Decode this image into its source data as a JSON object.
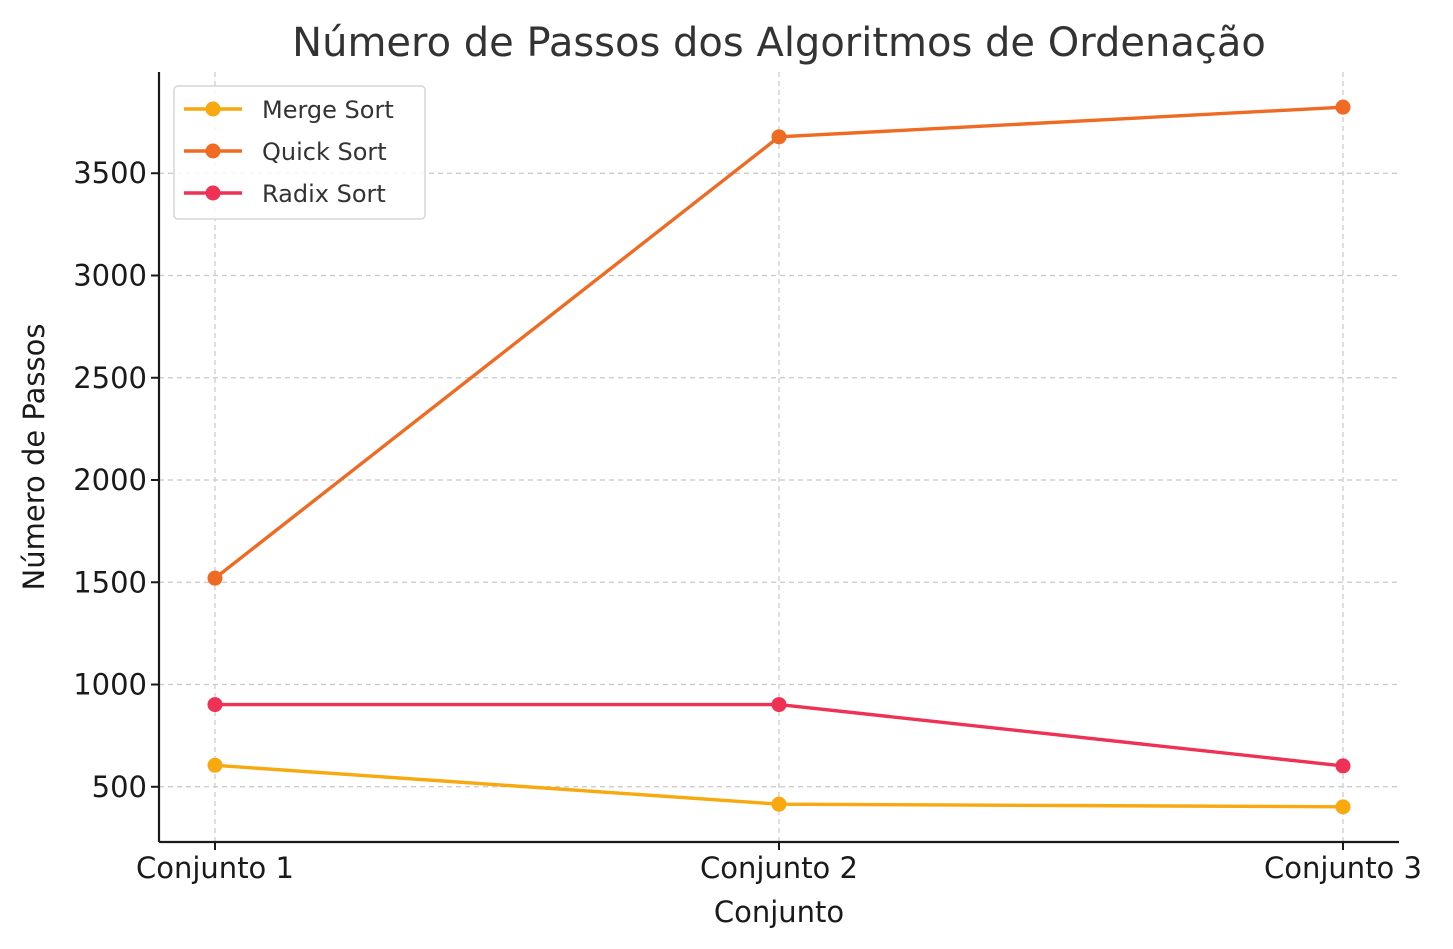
{
  "chart_data": {
    "type": "line",
    "title": "Número de Passos dos Algoritmos de Ordenação",
    "xlabel": "Conjunto",
    "ylabel": "Número de Passos",
    "categories": [
      "Conjunto 1",
      "Conjunto 2",
      "Conjunto 3"
    ],
    "ylim": [
      230,
      3995
    ],
    "yticks": [
      500,
      1000,
      1500,
      2000,
      2500,
      3000,
      3500
    ],
    "grid": true,
    "legend_position": "top-left",
    "series": [
      {
        "name": "Merge Sort",
        "color": "#f7a90f",
        "values": [
          605,
          415,
          402
        ]
      },
      {
        "name": "Quick Sort",
        "color": "#ef6a22",
        "values": [
          1520,
          3678,
          3823
        ]
      },
      {
        "name": "Radix Sort",
        "color": "#ee3154",
        "values": [
          902,
          902,
          602
        ]
      }
    ]
  }
}
